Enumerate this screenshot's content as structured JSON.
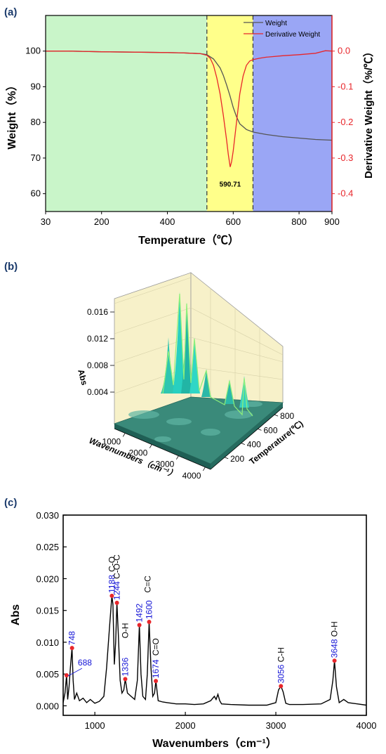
{
  "chart_data": [
    {
      "panel": "(a)",
      "type": "line",
      "xlabel": "Temperature（℃）",
      "ylabel": "Weight（%）",
      "y2label": "Derivative Weight（%/℃）",
      "xlim": [
        30,
        900
      ],
      "ylim": [
        55,
        110
      ],
      "y2lim": [
        -0.45,
        0.1
      ],
      "x_ticks": [
        30,
        200,
        400,
        600,
        800,
        900
      ],
      "y_ticks": [
        60,
        70,
        80,
        90,
        100
      ],
      "y2_ticks": [
        0.0,
        -0.1,
        -0.2,
        -0.3,
        -0.4
      ],
      "y2_tick_labels": [
        "0.0",
        "-0.1",
        "-0.2",
        "-0.3",
        "-0.4"
      ],
      "regions": [
        {
          "x": [
            30,
            520
          ],
          "color": "#c9f5c9"
        },
        {
          "x": [
            520,
            660
          ],
          "color": "#ffff8a"
        },
        {
          "x": [
            660,
            900
          ],
          "color": "#9aa6f5"
        }
      ],
      "dashed_lines_x": [
        520,
        660
      ],
      "series": [
        {
          "name": "Weight",
          "axis": "left",
          "color": "#555555",
          "x": [
            30,
            100,
            200,
            300,
            400,
            450,
            500,
            520,
            540,
            560,
            570,
            580,
            590,
            600,
            610,
            620,
            640,
            660,
            700,
            750,
            800,
            850,
            900
          ],
          "y": [
            100,
            100,
            99.8,
            99.7,
            99.6,
            99.5,
            99.3,
            99,
            97.8,
            95.3,
            93.2,
            90.5,
            87.5,
            84.2,
            81.6,
            79.6,
            78,
            77.3,
            76.6,
            76,
            75.6,
            75.2,
            75
          ]
        },
        {
          "name": "Derivative Weight",
          "axis": "right",
          "color": "#e8262b",
          "x": [
            30,
            100,
            200,
            300,
            400,
            450,
            500,
            520,
            530,
            540,
            550,
            560,
            570,
            580,
            585,
            590.71,
            595,
            600,
            610,
            620,
            630,
            640,
            650,
            660,
            680,
            700,
            750,
            800,
            850,
            880,
            900
          ],
          "y": [
            0,
            0,
            -0.002,
            -0.003,
            -0.004,
            -0.005,
            -0.007,
            -0.012,
            -0.02,
            -0.04,
            -0.075,
            -0.12,
            -0.18,
            -0.25,
            -0.29,
            -0.325,
            -0.31,
            -0.28,
            -0.2,
            -0.12,
            -0.07,
            -0.04,
            -0.028,
            -0.024,
            -0.02,
            -0.017,
            -0.013,
            -0.01,
            -0.006,
            0.001,
            0
          ]
        }
      ],
      "legend_position": "top-right",
      "annotations": [
        {
          "text": "590.71",
          "x": 590.71,
          "y2": -0.38
        }
      ]
    },
    {
      "panel": "(b)",
      "type": "surface-3d",
      "zlabel": "Abs",
      "xlabel": "Wavenumbers（cm⁻¹）",
      "ylabel": "Temperature(℃)",
      "x_ticks": [
        1000,
        2000,
        3000,
        4000
      ],
      "y_ticks": [
        200,
        400,
        600,
        800
      ],
      "z_ticks": [
        0.004,
        0.008,
        0.012,
        0.016
      ],
      "z_tick_labels": [
        "0.004",
        "0.008",
        "0.012",
        "0.016"
      ],
      "zlim": [
        0,
        0.018
      ]
    },
    {
      "panel": "(c)",
      "type": "line",
      "xlabel": "Wavenumbers（cm⁻¹）",
      "ylabel": "Abs",
      "xlim": [
        650,
        4000
      ],
      "ylim": [
        -0.0015,
        0.03
      ],
      "x_ticks": [
        1000,
        2000,
        3000,
        4000
      ],
      "y_ticks": [
        0,
        0.005,
        0.01,
        0.015,
        0.02,
        0.025,
        0.03
      ],
      "y_tick_labels": [
        "0.000",
        "0.005",
        "0.010",
        "0.015",
        "0.020",
        "0.025",
        "0.030"
      ],
      "series": [
        {
          "color": "#000000",
          "x": [
            650,
            670,
            688,
            700,
            715,
            730,
            748,
            760,
            775,
            800,
            830,
            870,
            910,
            950,
            1000,
            1050,
            1100,
            1130,
            1160,
            1188,
            1200,
            1215,
            1230,
            1244,
            1260,
            1280,
            1300,
            1320,
            1336,
            1360,
            1400,
            1440,
            1470,
            1492,
            1510,
            1530,
            1560,
            1580,
            1600,
            1620,
            1640,
            1660,
            1674,
            1700,
            1750,
            1800,
            1900,
            2000,
            2100,
            2200,
            2280,
            2320,
            2340,
            2360,
            2380,
            2400,
            2500,
            2700,
            2900,
            3000,
            3030,
            3056,
            3080,
            3110,
            3150,
            3300,
            3500,
            3600,
            3630,
            3648,
            3670,
            3700,
            3750,
            3800,
            3900,
            4000
          ],
          "y": [
            0.0005,
            0.002,
            0.0048,
            0.001,
            0.003,
            0.006,
            0.0091,
            0.004,
            0.001,
            0.002,
            0.0008,
            0.0012,
            0.0005,
            0.001,
            0.0004,
            0.0007,
            0.0015,
            0.006,
            0.012,
            0.0173,
            0.016,
            0.0065,
            0.01,
            0.0162,
            0.011,
            0.004,
            0.002,
            0.0025,
            0.0042,
            0.002,
            0.0015,
            0.001,
            0.004,
            0.0127,
            0.005,
            0.0015,
            0.001,
            0.005,
            0.0132,
            0.006,
            0.0015,
            0.002,
            0.0039,
            0.0008,
            0.0006,
            0.0005,
            0.0003,
            0.0003,
            0.0002,
            0.0003,
            0.0008,
            0.0015,
            0.001,
            0.0018,
            0.0008,
            0.0003,
            0.0002,
            0.0001,
            0.0001,
            0.0005,
            0.0025,
            0.0031,
            0.0022,
            0.0004,
            0.0002,
            0.0002,
            0.0003,
            0.001,
            0.004,
            0.0071,
            0.003,
            0.0005,
            0.001,
            0.0005,
            0.0003,
            0.0001
          ]
        }
      ],
      "peaks": [
        {
          "x": 688,
          "y": 0.0048,
          "label": "688"
        },
        {
          "x": 748,
          "y": 0.0091,
          "label": "748"
        },
        {
          "x": 1188,
          "y": 0.0173,
          "label": "1188"
        },
        {
          "x": 1244,
          "y": 0.0162,
          "label": "1244"
        },
        {
          "x": 1336,
          "y": 0.0042,
          "label": "1336"
        },
        {
          "x": 1492,
          "y": 0.0127,
          "label": "1492"
        },
        {
          "x": 1600,
          "y": 0.0132,
          "label": "1600"
        },
        {
          "x": 1674,
          "y": 0.0039,
          "label": "1674"
        },
        {
          "x": 3056,
          "y": 0.0031,
          "label": "3056"
        },
        {
          "x": 3648,
          "y": 0.0071,
          "label": "3648"
        }
      ],
      "group_labels": [
        {
          "text": "C-O",
          "x": 1188
        },
        {
          "text": "C-O-C",
          "x": 1244
        },
        {
          "text": "O-H",
          "x": 1336
        },
        {
          "text": "C=C",
          "x": 1492
        },
        {
          "text": "C=O",
          "x": 1674
        },
        {
          "text": "C-H",
          "x": 3056
        },
        {
          "text": "O-H",
          "x": 3648
        }
      ]
    }
  ]
}
